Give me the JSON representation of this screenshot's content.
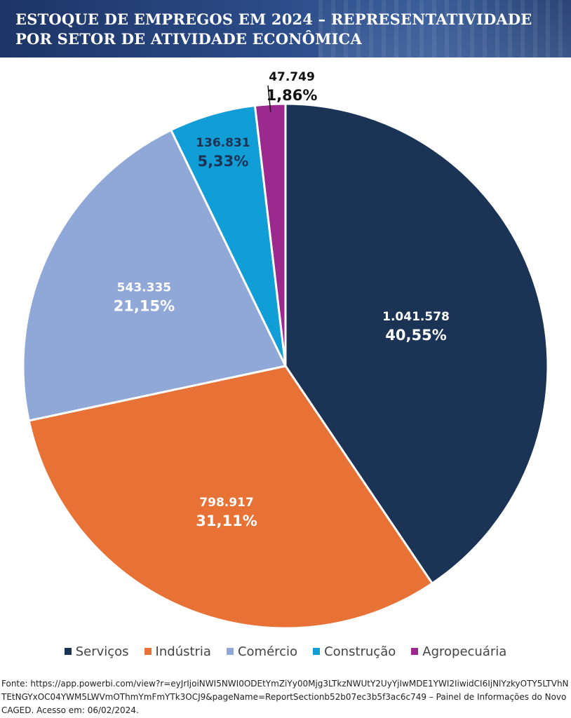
{
  "header": {
    "title": "ESTOQUE DE EMPREGOS EM 2024 – REPRESENTATIVIDADE POR SETOR DE ATIVIDADE ECONÔMICA"
  },
  "chart_data": {
    "type": "pie",
    "title": "ESTOQUE DE EMPREGOS EM 2024 – REPRESENTATIVIDADE POR SETOR DE ATIVIDADE ECONÔMICA",
    "start_angle_deg": 0,
    "direction": "clockwise",
    "legend_position": "bottom",
    "slices": [
      {
        "label": "Serviços",
        "value": 1041578,
        "value_label": "1.041.578",
        "percent": 40.55,
        "percent_label": "40,55%",
        "color": "#1b3354",
        "label_color": "#ffffff"
      },
      {
        "label": "Indústria",
        "value": 798917,
        "value_label": "798.917",
        "percent": 31.11,
        "percent_label": "31,11%",
        "color": "#e87235",
        "label_color": "#ffffff"
      },
      {
        "label": "Comércio",
        "value": 543335,
        "value_label": "543.335",
        "percent": 21.15,
        "percent_label": "21,15%",
        "color": "#8fa8d8",
        "label_color": "#ffffff"
      },
      {
        "label": "Construção",
        "value": 136831,
        "value_label": "136.831",
        "percent": 5.33,
        "percent_label": "5,33%",
        "color": "#119dd6",
        "label_color": "#1b3354"
      },
      {
        "label": "Agropecuária",
        "value": 47749,
        "value_label": "47.749",
        "percent": 1.86,
        "percent_label": "1,86%",
        "color": "#9c2a8e",
        "label_color": "#111111"
      }
    ]
  },
  "source": {
    "text": "Fonte:  https://app.powerbi.com/view?r=eyJrIjoiNWI5NWI0ODEtYmZiYy00Mjg3LTkzNWUtY2UyYjIwMDE1YWI2IiwidCI6IjNlYzkyOTY5LTVhNTEtNGYxOC04YWM5LWVmOThmYmFmYTk3OCJ9&pageName=ReportSectionb52b07ec3b5f3ac6c749 – Painel de Informações do Novo CAGED. Acesso em: 06/02/2024."
  }
}
